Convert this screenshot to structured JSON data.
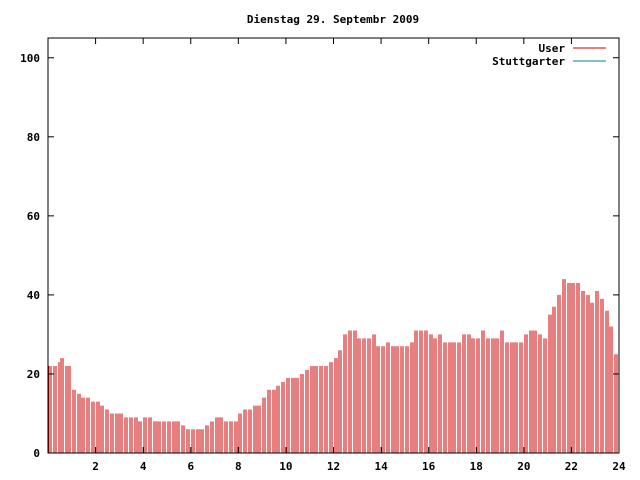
{
  "chart_data": {
    "type": "bar",
    "title": "Dienstag 29. Septembr 2009",
    "xlabel": "",
    "ylabel": "",
    "xlim": [
      0,
      24
    ],
    "ylim": [
      0,
      105
    ],
    "xticks": [
      2,
      4,
      6,
      8,
      10,
      12,
      14,
      16,
      18,
      20,
      22,
      24
    ],
    "yticks": [
      0,
      20,
      40,
      60,
      80,
      100
    ],
    "grid": false,
    "legend_position": "top-right",
    "series": [
      {
        "name": "User",
        "color": "#cc0000",
        "points": [
          [
            0.1,
            22
          ],
          [
            0.3,
            22
          ],
          [
            0.5,
            23
          ],
          [
            0.6,
            24
          ],
          [
            0.8,
            22
          ],
          [
            0.9,
            22
          ],
          [
            1.1,
            16
          ],
          [
            1.3,
            15
          ],
          [
            1.5,
            14
          ],
          [
            1.7,
            14
          ],
          [
            1.9,
            13
          ],
          [
            2.1,
            13
          ],
          [
            2.3,
            12
          ],
          [
            2.5,
            11
          ],
          [
            2.7,
            10
          ],
          [
            2.9,
            10
          ],
          [
            3.1,
            10
          ],
          [
            3.3,
            9
          ],
          [
            3.5,
            9
          ],
          [
            3.7,
            9
          ],
          [
            3.9,
            8
          ],
          [
            4.1,
            9
          ],
          [
            4.3,
            9
          ],
          [
            4.5,
            8
          ],
          [
            4.7,
            8
          ],
          [
            4.9,
            8
          ],
          [
            5.1,
            8
          ],
          [
            5.3,
            8
          ],
          [
            5.5,
            8
          ],
          [
            5.7,
            7
          ],
          [
            5.9,
            6
          ],
          [
            6.1,
            6
          ],
          [
            6.3,
            6
          ],
          [
            6.5,
            6
          ],
          [
            6.7,
            7
          ],
          [
            6.9,
            8
          ],
          [
            7.1,
            9
          ],
          [
            7.3,
            9
          ],
          [
            7.5,
            8
          ],
          [
            7.7,
            8
          ],
          [
            7.9,
            8
          ],
          [
            8.1,
            10
          ],
          [
            8.3,
            11
          ],
          [
            8.5,
            11
          ],
          [
            8.7,
            12
          ],
          [
            8.9,
            12
          ],
          [
            9.1,
            14
          ],
          [
            9.3,
            16
          ],
          [
            9.5,
            16
          ],
          [
            9.7,
            17
          ],
          [
            9.9,
            18
          ],
          [
            10.1,
            19
          ],
          [
            10.3,
            19
          ],
          [
            10.5,
            19
          ],
          [
            10.7,
            20
          ],
          [
            10.9,
            21
          ],
          [
            11.1,
            22
          ],
          [
            11.3,
            22
          ],
          [
            11.5,
            22
          ],
          [
            11.7,
            22
          ],
          [
            11.9,
            23
          ],
          [
            12.1,
            24
          ],
          [
            12.3,
            26
          ],
          [
            12.5,
            30
          ],
          [
            12.7,
            31
          ],
          [
            12.9,
            31
          ],
          [
            13.1,
            29
          ],
          [
            13.3,
            29
          ],
          [
            13.5,
            29
          ],
          [
            13.7,
            30
          ],
          [
            13.9,
            27
          ],
          [
            14.1,
            27
          ],
          [
            14.3,
            28
          ],
          [
            14.5,
            27
          ],
          [
            14.7,
            27
          ],
          [
            14.9,
            27
          ],
          [
            15.1,
            27
          ],
          [
            15.3,
            28
          ],
          [
            15.5,
            31
          ],
          [
            15.7,
            31
          ],
          [
            15.9,
            31
          ],
          [
            16.1,
            30
          ],
          [
            16.3,
            29
          ],
          [
            16.5,
            30
          ],
          [
            16.7,
            28
          ],
          [
            16.9,
            28
          ],
          [
            17.1,
            28
          ],
          [
            17.3,
            28
          ],
          [
            17.5,
            30
          ],
          [
            17.7,
            30
          ],
          [
            17.9,
            29
          ],
          [
            18.1,
            29
          ],
          [
            18.3,
            31
          ],
          [
            18.5,
            29
          ],
          [
            18.7,
            29
          ],
          [
            18.9,
            29
          ],
          [
            19.1,
            31
          ],
          [
            19.3,
            28
          ],
          [
            19.5,
            28
          ],
          [
            19.7,
            28
          ],
          [
            19.9,
            28
          ],
          [
            20.1,
            30
          ],
          [
            20.3,
            31
          ],
          [
            20.5,
            31
          ],
          [
            20.7,
            30
          ],
          [
            20.9,
            29
          ],
          [
            21.1,
            35
          ],
          [
            21.3,
            37
          ],
          [
            21.5,
            40
          ],
          [
            21.7,
            44
          ],
          [
            21.9,
            43
          ],
          [
            22.1,
            43
          ],
          [
            22.3,
            43
          ],
          [
            22.5,
            41
          ],
          [
            22.7,
            40
          ],
          [
            22.9,
            38
          ],
          [
            23.1,
            41
          ],
          [
            23.3,
            39
          ],
          [
            23.5,
            36
          ],
          [
            23.7,
            32
          ],
          [
            23.9,
            25
          ]
        ]
      },
      {
        "name": "Stuttgarter",
        "color": "#008b8b",
        "points": []
      }
    ]
  }
}
